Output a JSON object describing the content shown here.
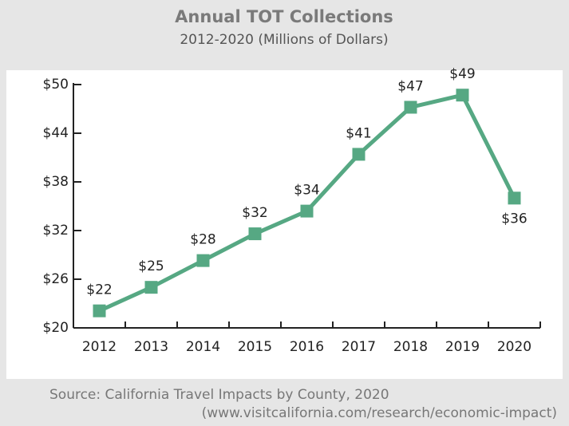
{
  "chart_data": {
    "type": "line",
    "title": "Annual TOT Collections",
    "subtitle": "2012-2020 (Millions of Dollars)",
    "source": [
      "Source: California Travel Impacts by County, 2020",
      "(www.visitcalifornia.com/research/economic-impact)"
    ],
    "categories": [
      "2012",
      "2013",
      "2014",
      "2015",
      "2016",
      "2017",
      "2018",
      "2019",
      "2020"
    ],
    "series": [
      {
        "name": "TOT Collections",
        "color": "#56a883",
        "values": [
          22.1,
          25.0,
          28.3,
          31.6,
          34.4,
          41.4,
          47.2,
          48.7,
          36.0
        ],
        "value_labels": [
          "$22",
          "$25",
          "$28",
          "$32",
          "$34",
          "$41",
          "$47",
          "$49",
          "$36"
        ]
      }
    ],
    "ylim": [
      20,
      50
    ],
    "yticks": [
      {
        "value": 20,
        "label": "$20"
      },
      {
        "value": 26,
        "label": "$26"
      },
      {
        "value": 32,
        "label": "$32"
      },
      {
        "value": 38,
        "label": "$38"
      },
      {
        "value": 44,
        "label": "$44"
      },
      {
        "value": 50,
        "label": "$50"
      }
    ]
  }
}
